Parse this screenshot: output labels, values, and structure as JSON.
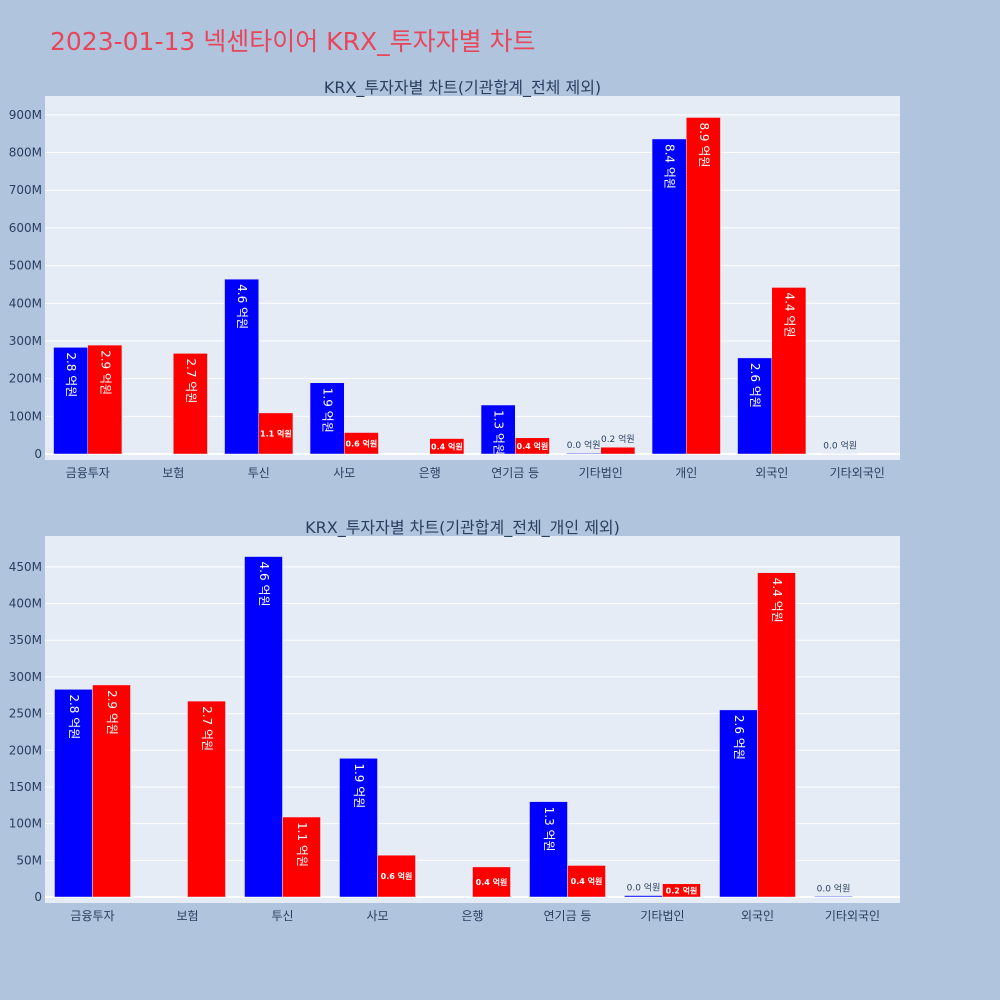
{
  "page_title": "2023-01-13 넥센타이어 KRX_투자자별 차트",
  "colors": {
    "page_bg": "#b0c4de",
    "plot_bg": "#e5ecf6",
    "grid": "#ffffff",
    "series_blue": "#0000ff",
    "series_red": "#ff0000",
    "title_red": "#e8465a",
    "text": "#2a3f5f"
  },
  "chart_data": [
    {
      "type": "bar",
      "title": "KRX_투자자별 차트(기관합계_전체 제외)",
      "categories": [
        "금융투자",
        "보험",
        "투신",
        "사모",
        "은행",
        "연기금 등",
        "기타법인",
        "개인",
        "외국인",
        "기타외국인"
      ],
      "series": [
        {
          "color": "#0000ff",
          "values": [
            283000000,
            0,
            464000000,
            189000000,
            0,
            130000000,
            2000000,
            836000000,
            255000000,
            1000000
          ],
          "labels": [
            "2.8 억원",
            null,
            "4.6 억원",
            "1.9 억원",
            null,
            "1.3 억원",
            "0.0 억원",
            "8.4 억원",
            "2.6 억원",
            "0.0 억원"
          ]
        },
        {
          "color": "#ff0000",
          "values": [
            289000000,
            267000000,
            109000000,
            57000000,
            41000000,
            43000000,
            18000000,
            893000000,
            442000000,
            0
          ],
          "labels": [
            "2.9 억원",
            "2.7 억원",
            "1.1 억원",
            "0.6 억원",
            "0.4 억원",
            "0.4 억원",
            "0.2 억원",
            "8.9 억원",
            "4.4 억원",
            null
          ]
        }
      ],
      "ylim": [
        0,
        950000000
      ],
      "yticks": [
        0,
        100000000,
        200000000,
        300000000,
        400000000,
        500000000,
        600000000,
        700000000,
        800000000,
        900000000
      ],
      "ytick_labels": [
        "0",
        "100M",
        "200M",
        "300M",
        "400M",
        "500M",
        "600M",
        "700M",
        "800M",
        "900M"
      ],
      "grid": true
    },
    {
      "type": "bar",
      "title": "KRX_투자자별 차트(기관합계_전체_개인 제외)",
      "categories": [
        "금융투자",
        "보험",
        "투신",
        "사모",
        "은행",
        "연기금 등",
        "기타법인",
        "외국인",
        "기타외국인"
      ],
      "series": [
        {
          "color": "#0000ff",
          "values": [
            283000000,
            0,
            464000000,
            189000000,
            0,
            130000000,
            2000000,
            255000000,
            1000000
          ],
          "labels": [
            "2.8 억원",
            null,
            "4.6 억원",
            "1.9 억원",
            null,
            "1.3 억원",
            "0.0 억원",
            "2.6 억원",
            "0.0 억원"
          ]
        },
        {
          "color": "#ff0000",
          "values": [
            289000000,
            267000000,
            109000000,
            57000000,
            41000000,
            43000000,
            18000000,
            442000000,
            0
          ],
          "labels": [
            "2.9 억원",
            "2.7 억원",
            "1.1 억원",
            "0.6 억원",
            "0.4 억원",
            "0.4 억원",
            "0.2 억원",
            "4.4 억원",
            null
          ]
        }
      ],
      "ylim": [
        0,
        492000000
      ],
      "yticks": [
        0,
        50000000,
        100000000,
        150000000,
        200000000,
        250000000,
        300000000,
        350000000,
        400000000,
        450000000
      ],
      "ytick_labels": [
        "0",
        "50M",
        "100M",
        "150M",
        "200M",
        "250M",
        "300M",
        "350M",
        "400M",
        "450M"
      ],
      "grid": true
    }
  ]
}
